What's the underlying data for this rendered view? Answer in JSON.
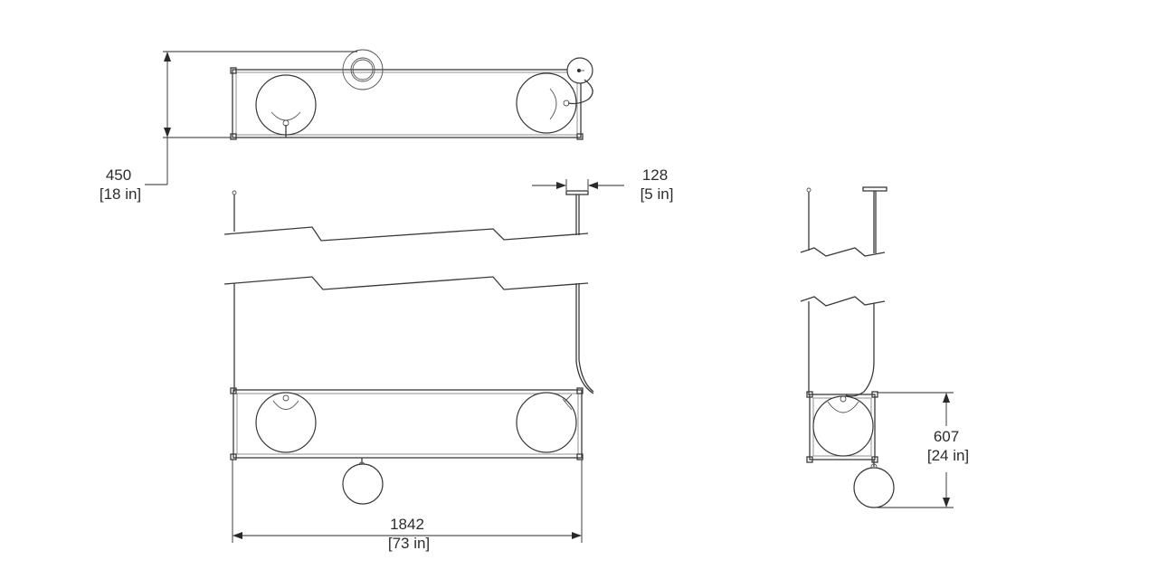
{
  "dimensions": {
    "height_top": {
      "value": "450",
      "imperial": "[18 in]"
    },
    "canopy_width": {
      "value": "128",
      "imperial": "[5 in]"
    },
    "overall_length": {
      "value": "1842",
      "imperial": "[73 in]"
    },
    "side_height": {
      "value": "607",
      "imperial": "[24 in]"
    }
  }
}
